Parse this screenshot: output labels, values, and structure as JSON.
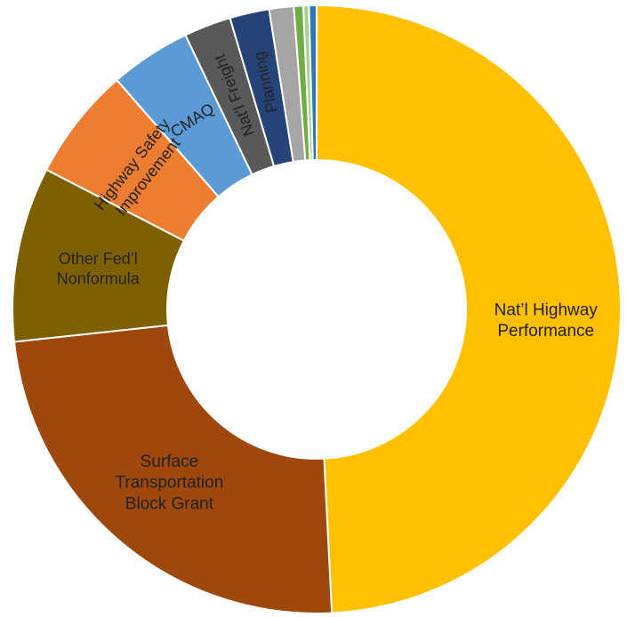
{
  "chart_data": {
    "type": "pie",
    "variant": "donut",
    "title": "",
    "legend": "none",
    "slices": [
      {
        "label": "Nat’l Highway Performance",
        "label_lines": [
          "Nat’l Highway",
          "Performance"
        ],
        "value": 49.2,
        "color": "#FFC000"
      },
      {
        "label": "Surface Transportation Block Grant",
        "label_lines": [
          "Surface",
          "Transportation",
          "Block Grant"
        ],
        "value": 24.1,
        "color": "#9E480E"
      },
      {
        "label": "Other Fed’l Nonformula",
        "label_lines": [
          "Other Fed’l",
          "Nonformula"
        ],
        "value": 9.3,
        "color": "#7F6000"
      },
      {
        "label": "Highway Safety Improvement",
        "label_lines": [
          "Highway Safety",
          "Improvement"
        ],
        "value": 6.0,
        "color": "#ED7D31"
      },
      {
        "label": "CMAQ",
        "label_lines": [
          "CMAQ"
        ],
        "value": 4.3,
        "color": "#5B9BD5"
      },
      {
        "label": "Nat’l Freight",
        "label_lines": [
          "Nat’l Freight"
        ],
        "value": 2.5,
        "color": "#595959"
      },
      {
        "label": "Planning",
        "label_lines": [
          "Planning"
        ],
        "value": 2.1,
        "color": "#264478"
      },
      {
        "label": "",
        "label_lines": [],
        "value": 1.3,
        "color": "#A5A5A5"
      },
      {
        "label": "",
        "label_lines": [],
        "value": 0.5,
        "color": "#70AD47"
      },
      {
        "label": "",
        "label_lines": [],
        "value": 0.3,
        "color": "#A9D18E"
      },
      {
        "label": "",
        "label_lines": [],
        "value": 0.4,
        "color": "#2E75B6"
      }
    ]
  }
}
